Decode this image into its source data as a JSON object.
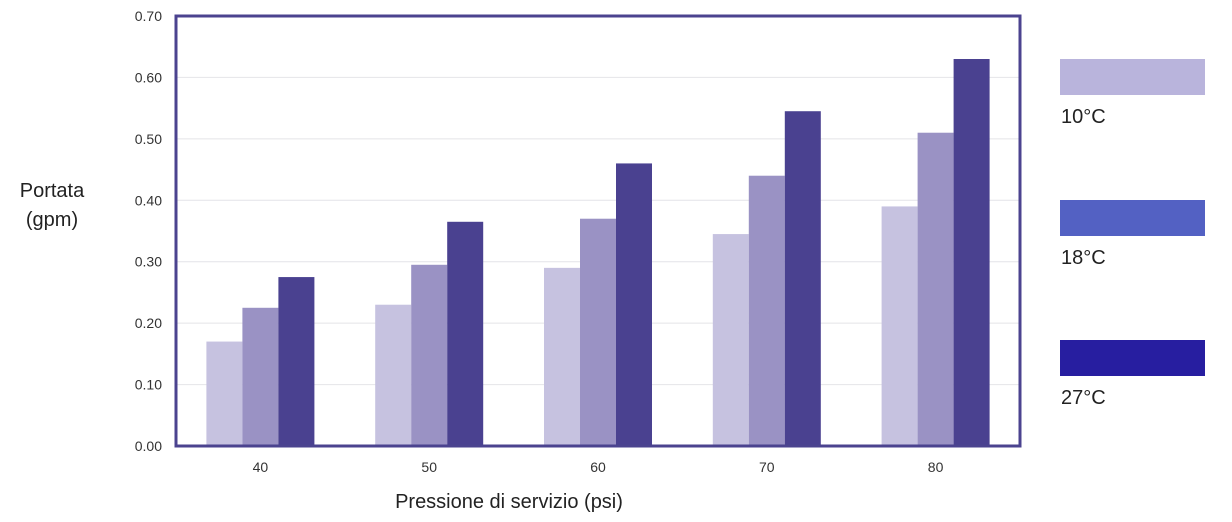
{
  "chart_data": {
    "type": "bar",
    "title": "",
    "xlabel": "Pressione di servizio (psi)",
    "ylabel": [
      "Portata",
      "(gpm)"
    ],
    "categories": [
      "40",
      "50",
      "60",
      "70",
      "80"
    ],
    "ylim": [
      0,
      0.7
    ],
    "yticks": [
      "0.00",
      "0.10",
      "0.20",
      "0.30",
      "0.40",
      "0.50",
      "0.60",
      "0.70"
    ],
    "grid": true,
    "legend_position": "right",
    "series": [
      {
        "name": "10°C",
        "values": [
          0.17,
          0.23,
          0.29,
          0.345,
          0.39
        ],
        "color": "#c6c2e0",
        "legend_color": "#b9b4dc"
      },
      {
        "name": "18°C",
        "values": [
          0.225,
          0.295,
          0.37,
          0.44,
          0.51
        ],
        "color": "#9a92c4",
        "legend_color": "#5361c3"
      },
      {
        "name": "27°C",
        "values": [
          0.275,
          0.365,
          0.46,
          0.545,
          0.63
        ],
        "color": "#4a4190",
        "legend_color": "#271ea0"
      }
    ],
    "frame_color": "#4b438f"
  }
}
